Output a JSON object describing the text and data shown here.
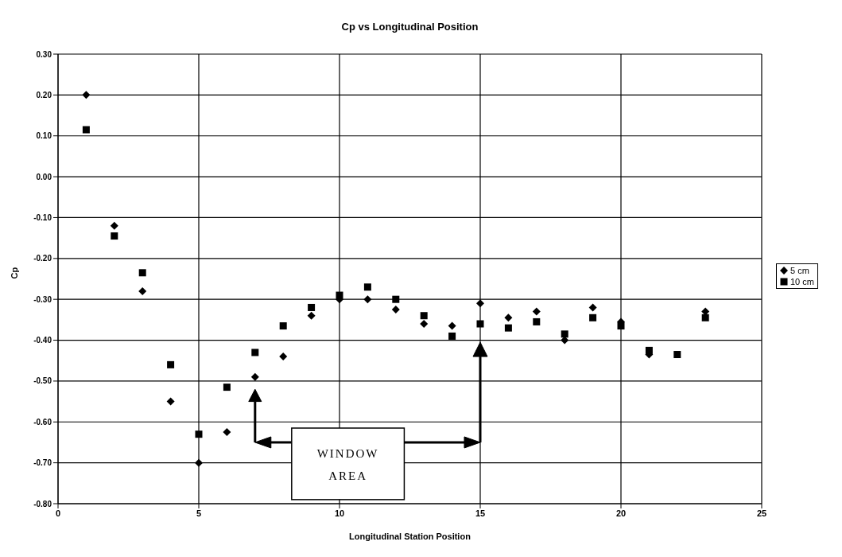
{
  "chart_data": {
    "type": "scatter",
    "title": "Cp vs Longitudinal Position",
    "xlabel": "Longitudinal Station Position",
    "ylabel": "Cp",
    "x": [
      1,
      2,
      3,
      4,
      5,
      6,
      7,
      8,
      9,
      10,
      11,
      12,
      13,
      14,
      15,
      16,
      17,
      18,
      19,
      20,
      21,
      22,
      23
    ],
    "series": [
      {
        "name": "5 cm",
        "color": "#000000",
        "marker": "diamond",
        "values": [
          0.2,
          -0.12,
          -0.28,
          -0.55,
          -0.7,
          -0.625,
          -0.49,
          -0.44,
          -0.34,
          -0.3,
          -0.3,
          -0.325,
          -0.36,
          -0.365,
          -0.31,
          -0.345,
          -0.33,
          -0.4,
          -0.32,
          -0.355,
          -0.435,
          null,
          -0.33
        ]
      },
      {
        "name": "10 cm",
        "color": "#000000",
        "marker": "square",
        "values": [
          0.115,
          -0.145,
          -0.235,
          -0.46,
          -0.63,
          -0.515,
          -0.43,
          -0.365,
          -0.32,
          -0.29,
          -0.27,
          -0.3,
          -0.34,
          -0.39,
          -0.36,
          -0.37,
          -0.355,
          -0.385,
          -0.345,
          -0.365,
          -0.425,
          -0.435,
          -0.345
        ]
      }
    ],
    "xlim": [
      0,
      25
    ],
    "xticks": [
      0,
      5,
      10,
      15,
      20,
      25
    ],
    "ylim": [
      -0.8,
      0.3
    ],
    "yticks": [
      {
        "value": -0.8,
        "label": "-0.80"
      },
      {
        "value": -0.7,
        "label": "-0.70"
      },
      {
        "value": -0.6,
        "label": "-0.60"
      },
      {
        "value": -0.5,
        "label": "-0.50"
      },
      {
        "value": -0.4,
        "label": "-0.40"
      },
      {
        "value": -0.3,
        "label": "-0.30"
      },
      {
        "value": -0.2,
        "label": "-0.20"
      },
      {
        "value": -0.1,
        "label": "-0.10"
      },
      {
        "value": 0,
        "label": "0.00"
      },
      {
        "value": 0.1,
        "label": "0.10"
      },
      {
        "value": 0.2,
        "label": "0.20"
      },
      {
        "value": 0.3,
        "label": "0.30"
      }
    ],
    "grid": true,
    "legend": "right",
    "annotations": [
      "WINDOW AREA"
    ]
  }
}
